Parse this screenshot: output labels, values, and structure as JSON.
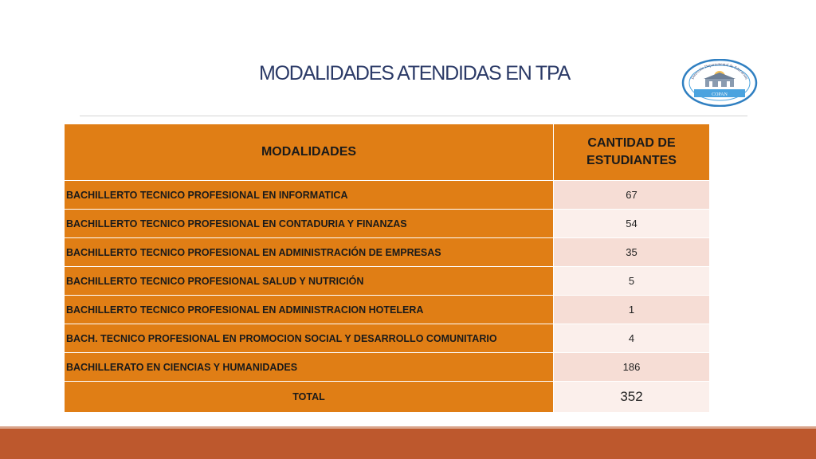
{
  "slide": {
    "title": "MODALIDADES ATENDIDAS EN TPA"
  },
  "logo": {
    "top_text": "Dirección Departamental de Educación",
    "bottom_text": "COPAN",
    "colors": {
      "ring": "#2f7fc1",
      "band": "#4aa3df",
      "sun": "#f2b53a"
    }
  },
  "table": {
    "headers": {
      "modalidades": "MODALIDADES",
      "cantidad": "CANTIDAD DE ESTUDIANTES"
    },
    "rows": [
      {
        "name": "BACHILLERTO TECNICO PROFESIONAL EN INFORMATICA",
        "value": "67"
      },
      {
        "name": "BACHILLERTO TECNICO PROFESIONAL EN CONTADURIA Y FINANZAS",
        "value": "54"
      },
      {
        "name": "BACHILLERTO TECNICO PROFESIONAL EN ADMINISTRACIÓN DE EMPRESAS",
        "value": "35"
      },
      {
        "name": "BACHILLERTO TECNICO PROFESIONAL SALUD Y NUTRICIÓN",
        "value": "5"
      },
      {
        "name": "BACHILLERTO TECNICO PROFESIONAL EN ADMINISTRACION HOTELERA",
        "value": "1"
      },
      {
        "name": "BACH. TECNICO PROFESIONAL EN PROMOCION SOCIAL Y DESARROLLO COMUNITARIO",
        "value": "4"
      },
      {
        "name": "BACHILLERATO EN CIENCIAS Y HUMANIDADES",
        "value": "186"
      }
    ],
    "total": {
      "label": "TOTAL",
      "value": "352"
    }
  },
  "colors": {
    "header_orange": "#e07e15",
    "value_cell_light": "#f6ddd5",
    "value_cell_lighter": "#fbefeb",
    "footer_band": "#bd582d",
    "title_text": "#2b3a67"
  }
}
